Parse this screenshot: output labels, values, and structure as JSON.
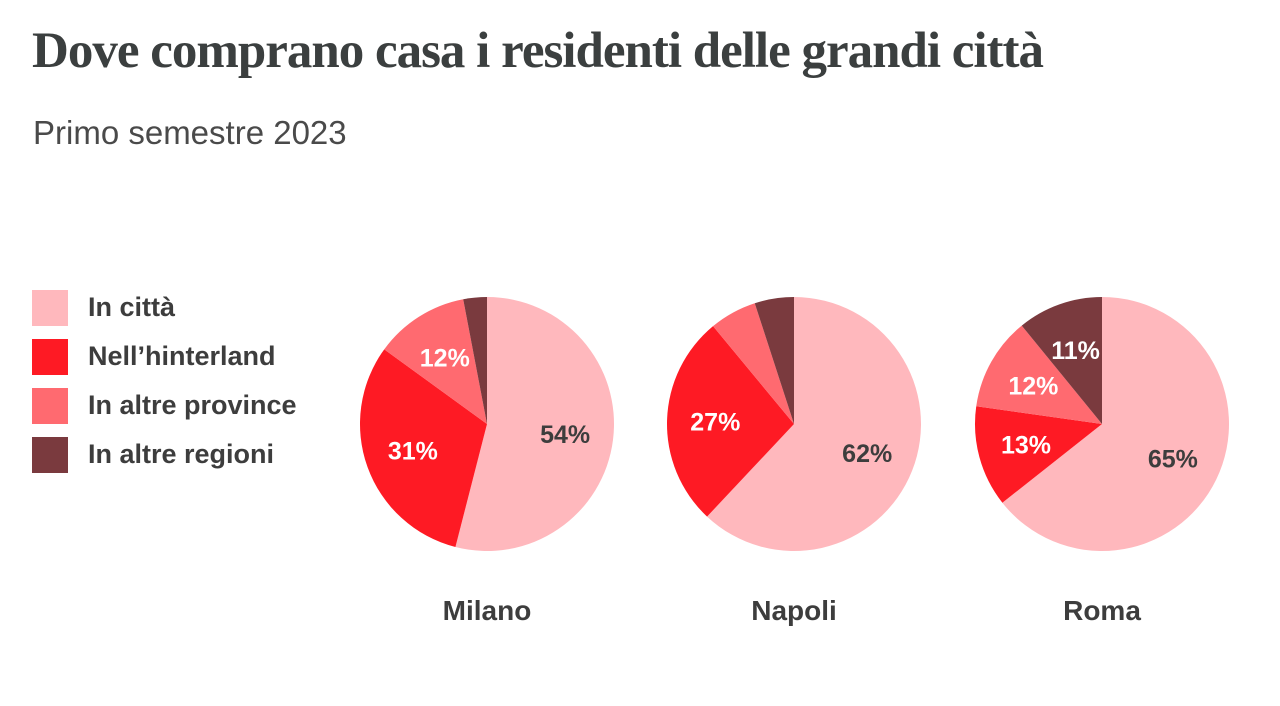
{
  "chart_data": {
    "type": "pie",
    "title": "Dove comprano casa i residenti delle grandi città",
    "subtitle": "Primo semestre 2023",
    "legend_placement": "left",
    "categories": [
      "In città",
      "Nell’hinterland",
      "In altre province",
      "In altre regioni"
    ],
    "colors": [
      "#ffb8bd",
      "#fe1a24",
      "#ff6a70",
      "#7a3a3e"
    ],
    "label_colors": [
      "#3d3d3d",
      "#ffffff",
      "#ffffff",
      "#ffffff"
    ],
    "pies": [
      {
        "name": "Milano",
        "values": [
          54,
          31,
          12,
          3
        ],
        "labels": [
          "54%",
          "31%",
          "12%",
          ""
        ]
      },
      {
        "name": "Napoli",
        "values": [
          62,
          27,
          6,
          5
        ],
        "labels": [
          "62%",
          "27%",
          "",
          ""
        ]
      },
      {
        "name": "Roma",
        "values": [
          65,
          13,
          12,
          11
        ],
        "labels": [
          "65%",
          "13%",
          "12%",
          "11%"
        ]
      }
    ]
  }
}
